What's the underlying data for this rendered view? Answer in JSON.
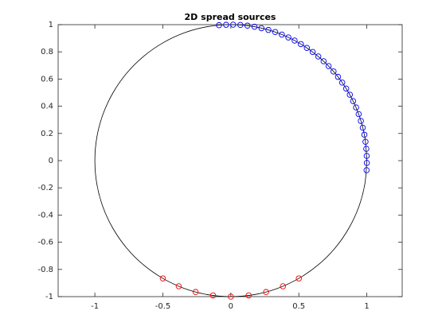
{
  "chart_data": {
    "type": "scatter",
    "title": "2D spread sources",
    "xlim": [
      -1.27,
      1.26
    ],
    "ylim": [
      -1,
      1
    ],
    "xticks": [
      -1,
      -0.5,
      0,
      0.5,
      1
    ],
    "yticks": [
      -1,
      -0.8,
      -0.6,
      -0.4,
      -0.2,
      0,
      0.2,
      0.4,
      0.6,
      0.8,
      1
    ],
    "grid": false,
    "series": [
      {
        "style": "line",
        "color": "#000000",
        "x": [
          1,
          0.985,
          0.94,
          0.866,
          0.766,
          0.643,
          0.5,
          0.342,
          0.174,
          0,
          -0.174,
          -0.342,
          -0.5,
          -0.643,
          -0.766,
          -0.866,
          -0.94,
          -0.985,
          -1,
          -0.985,
          -0.94,
          -0.866,
          -0.766,
          -0.643,
          -0.5,
          -0.342,
          -0.174,
          0,
          0.174,
          0.342,
          0.5,
          0.643,
          0.766,
          0.866,
          0.94,
          0.985,
          1
        ],
        "values": [
          0,
          0.174,
          0.342,
          0.5,
          0.643,
          0.766,
          0.866,
          0.94,
          0.985,
          1,
          0.985,
          0.94,
          0.866,
          0.766,
          0.643,
          0.5,
          0.342,
          0.174,
          0,
          -0.174,
          -0.342,
          -0.5,
          -0.643,
          -0.766,
          -0.866,
          -0.94,
          -0.985,
          -1,
          -0.985,
          -0.94,
          -0.866,
          -0.766,
          -0.643,
          -0.5,
          -0.342,
          -0.174,
          0
        ]
      },
      {
        "style": "marker",
        "color": "#0000ff",
        "x": [
          -0.087,
          -0.035,
          0.017,
          0.07,
          0.122,
          0.174,
          0.225,
          0.276,
          0.326,
          0.375,
          0.423,
          0.469,
          0.515,
          0.559,
          0.602,
          0.643,
          0.682,
          0.719,
          0.755,
          0.788,
          0.819,
          0.848,
          0.875,
          0.899,
          0.921,
          0.94,
          0.956,
          0.97,
          0.982,
          0.99,
          0.996,
          0.999,
          1,
          0.998
        ],
        "values": [
          0.996,
          0.999,
          1,
          0.998,
          0.993,
          0.985,
          0.974,
          0.961,
          0.946,
          0.927,
          0.906,
          0.883,
          0.857,
          0.829,
          0.799,
          0.766,
          0.731,
          0.695,
          0.656,
          0.616,
          0.574,
          0.53,
          0.485,
          0.438,
          0.391,
          0.342,
          0.292,
          0.242,
          0.191,
          0.139,
          0.087,
          0.035,
          -0.017,
          -0.07
        ]
      },
      {
        "style": "marker",
        "color": "#ff0000",
        "x": [
          -0.5,
          -0.383,
          -0.259,
          -0.131,
          0,
          0.131,
          0.259,
          0.383,
          0.5
        ],
        "values": [
          -0.866,
          -0.924,
          -0.966,
          -0.991,
          -1,
          -0.991,
          -0.966,
          -0.924,
          -0.866
        ]
      }
    ]
  }
}
